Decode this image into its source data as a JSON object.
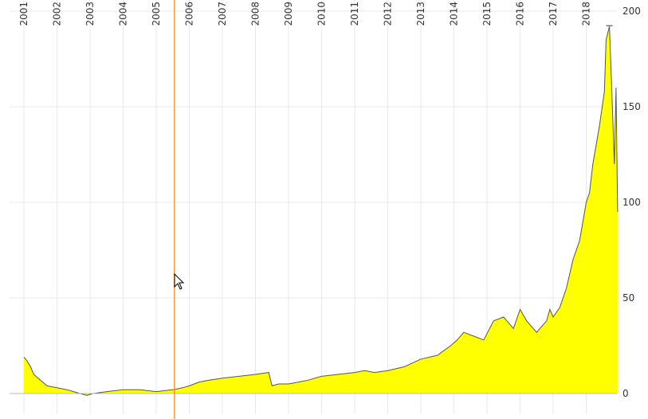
{
  "colors": {
    "area_fill": "#ffff00",
    "line": "#555555",
    "crosshair": "#ff9933",
    "grid": "#e8e8e8",
    "background": "#ffffff"
  },
  "crosshair": {
    "x": 2005.55
  },
  "chart_data": {
    "type": "area",
    "title": "",
    "xlabel": "",
    "ylabel": "",
    "grid": true,
    "x_tick_labels": [
      "2001",
      "2002",
      "2003",
      "2004",
      "2005",
      "2006",
      "2007",
      "2008",
      "2009",
      "2010",
      "2011",
      "2012",
      "2013",
      "2014",
      "2015",
      "2016",
      "2017",
      "2018"
    ],
    "y_tick_labels": [
      "0",
      "50",
      "100",
      "150",
      "200"
    ],
    "xlim": [
      2001.0,
      2018.95
    ],
    "ylim": [
      0,
      200
    ],
    "series": [
      {
        "x": [
          2001.0,
          2001.1,
          2001.2,
          2001.3,
          2001.5,
          2001.7,
          2002.0,
          2002.3,
          2002.5,
          2002.7,
          2002.9,
          2003.1,
          2003.5,
          2004.0,
          2004.5,
          2005.0,
          2005.5,
          2005.8,
          2006.0,
          2006.3,
          2006.6,
          2007.0,
          2007.5,
          2008.0,
          2008.4,
          2008.5,
          2008.7,
          2009.0,
          2009.3,
          2009.6,
          2010.0,
          2010.5,
          2011.0,
          2011.3,
          2011.6,
          2012.0,
          2012.5,
          2013.0,
          2013.5,
          2013.9,
          2014.1,
          2014.3,
          2014.6,
          2014.9,
          2015.2,
          2015.5,
          2015.8,
          2016.0,
          2016.2,
          2016.5,
          2016.8,
          2016.9,
          2017.0,
          2017.2,
          2017.4,
          2017.6,
          2017.8,
          2017.9,
          2018.0,
          2018.1,
          2018.2,
          2018.4,
          2018.55,
          2018.6,
          2018.7,
          2018.75,
          2018.8,
          2018.85,
          2018.9,
          2018.95
        ],
        "y": [
          19,
          17,
          14,
          10,
          7,
          4,
          3,
          2,
          1,
          0,
          -1,
          0,
          1,
          2,
          2,
          1,
          2,
          3,
          4,
          6,
          7,
          8,
          9,
          10,
          11,
          4,
          5,
          5,
          6,
          7,
          9,
          10,
          11,
          12,
          11,
          12,
          14,
          18,
          20,
          25,
          28,
          32,
          30,
          28,
          38,
          40,
          34,
          44,
          38,
          32,
          38,
          44,
          40,
          45,
          55,
          70,
          80,
          90,
          100,
          105,
          120,
          140,
          158,
          185,
          192,
          170,
          145,
          120,
          160,
          95
        ]
      }
    ]
  }
}
